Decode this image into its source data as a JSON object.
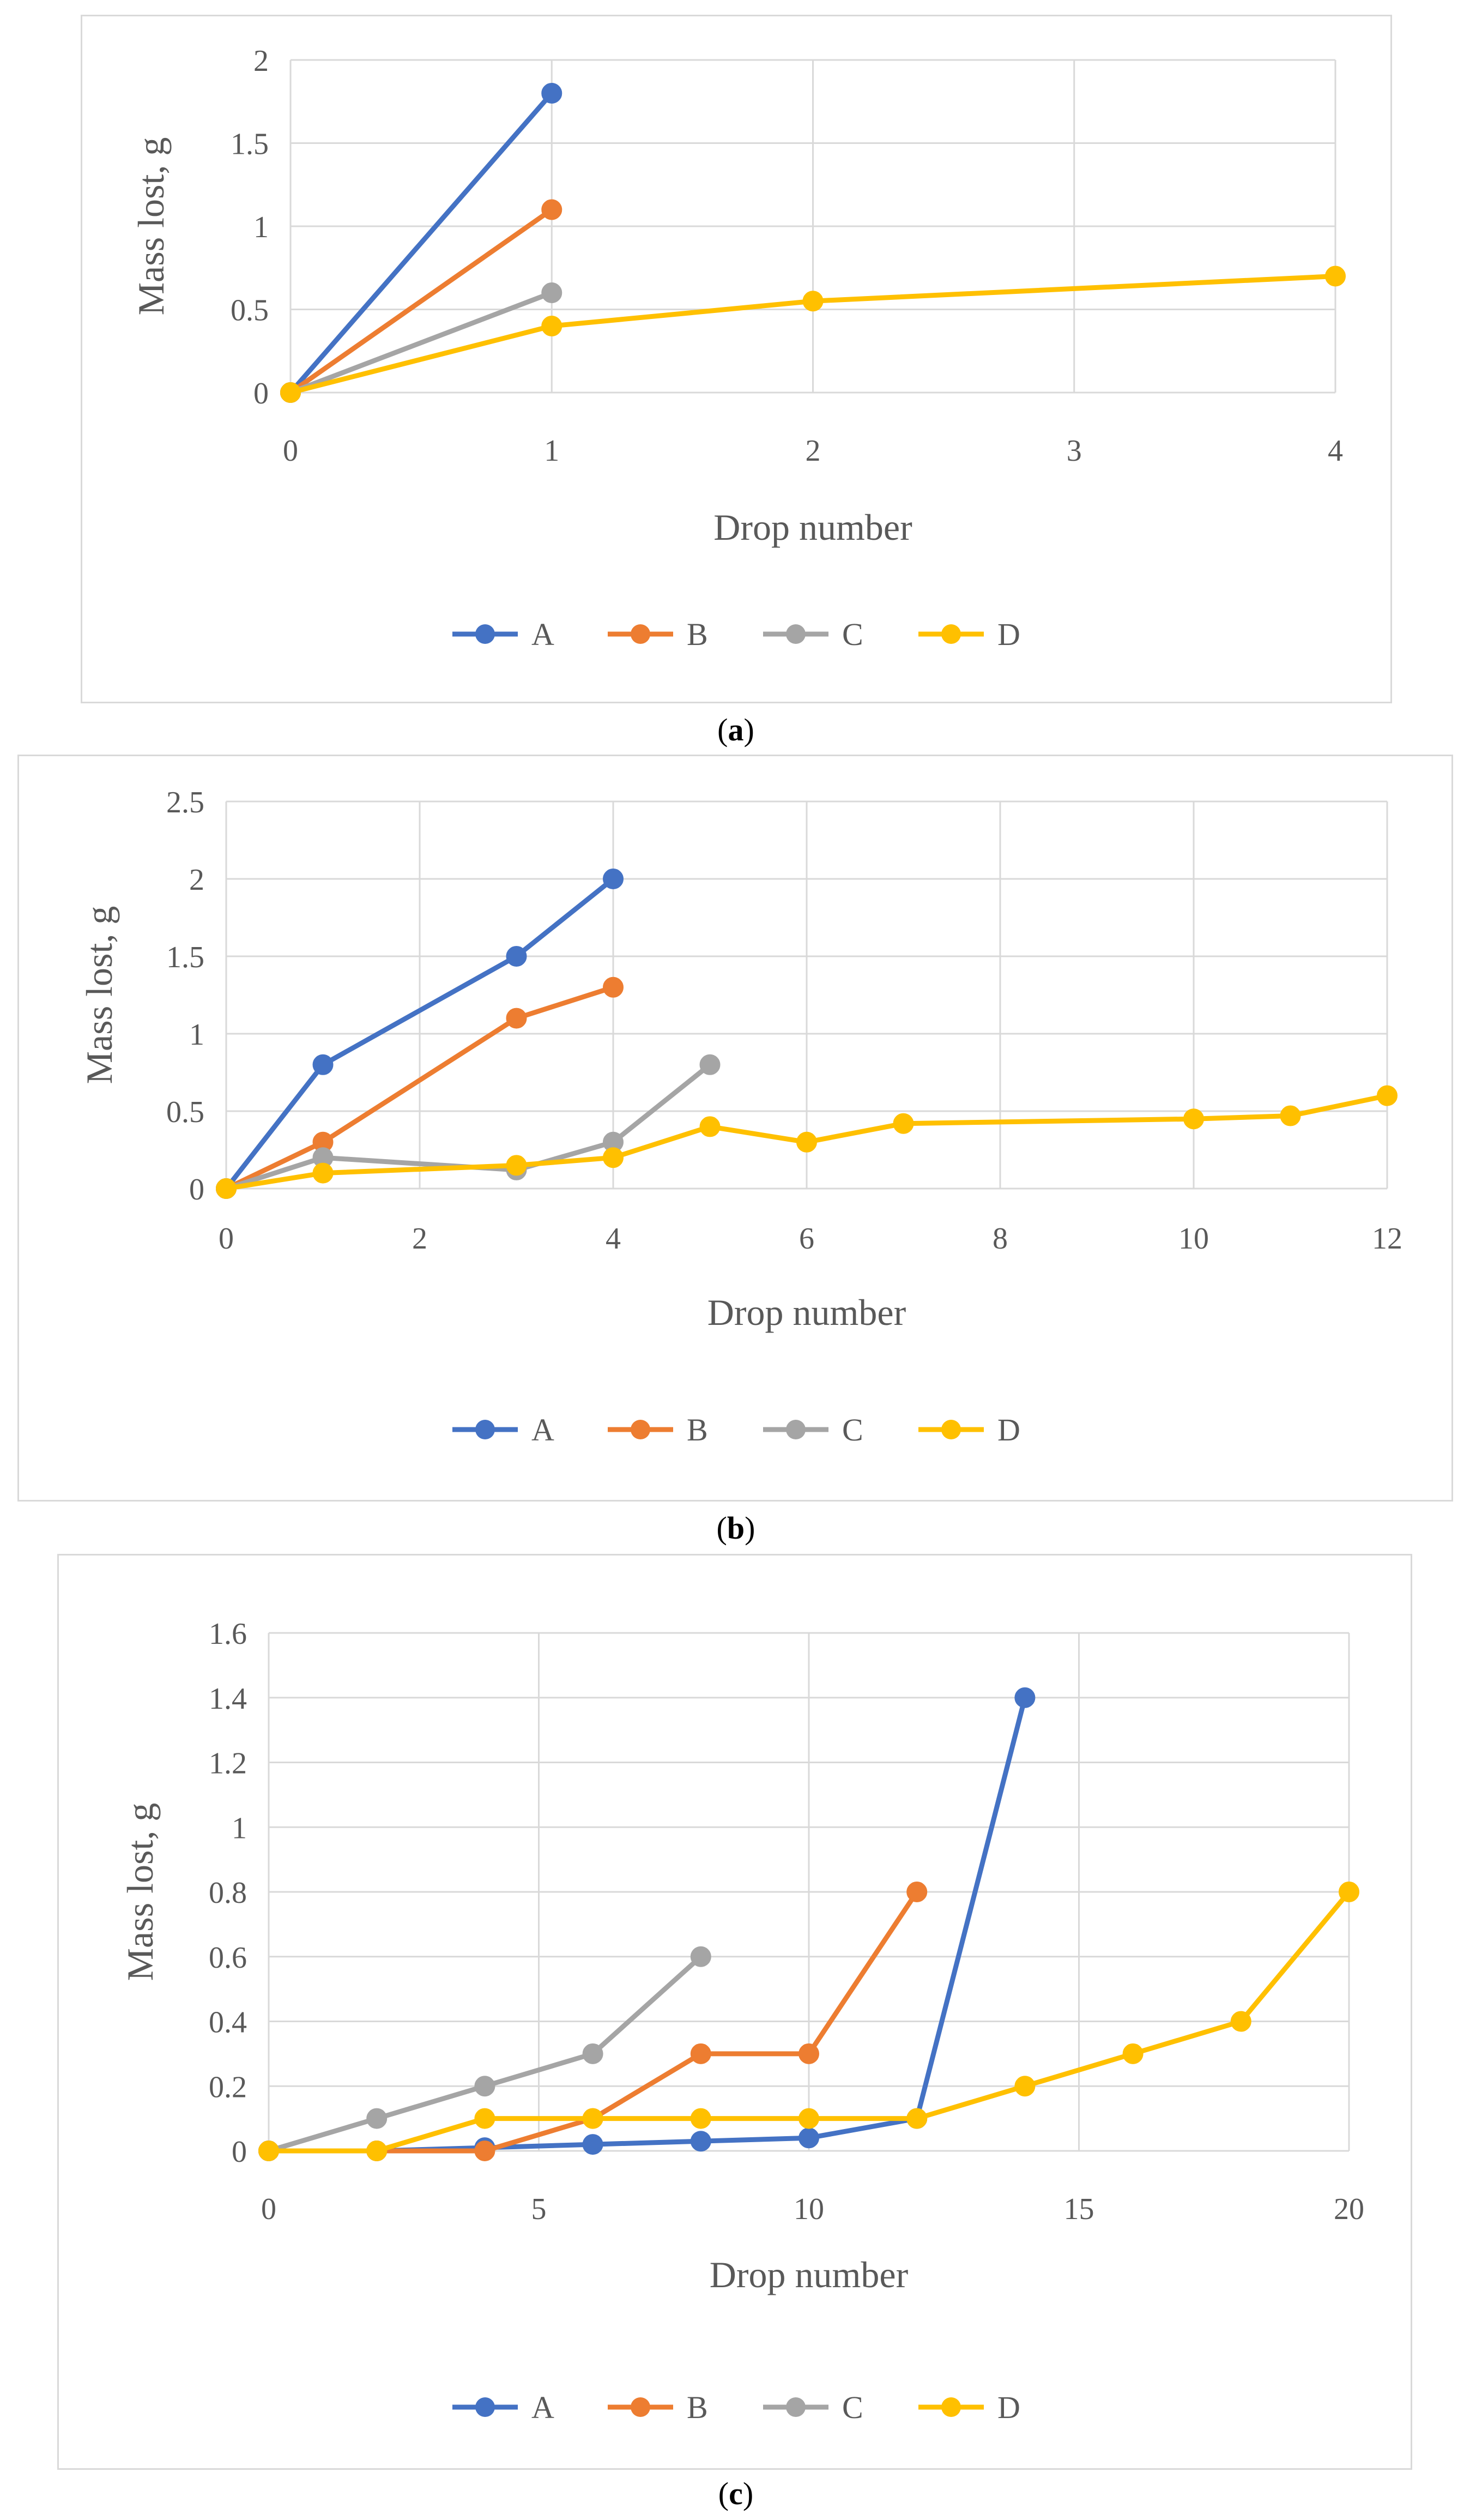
{
  "colors": {
    "A": "#4472C4",
    "B": "#ED7D31",
    "C": "#A5A5A5",
    "D": "#FFC000",
    "grid": "#d9d9d9",
    "text": "#595959"
  },
  "captions": [
    "a",
    "b",
    "c"
  ],
  "chart_data": [
    {
      "type": "line",
      "panel": "a",
      "xlabel": "Drop number",
      "ylabel": "Mass lost, g",
      "xlim": [
        0,
        4
      ],
      "ylim": [
        0,
        2
      ],
      "xticks": [
        "0",
        "1",
        "2",
        "3",
        "4"
      ],
      "yticks": [
        "0",
        "0.5",
        "1",
        "1.5",
        "2"
      ],
      "series": [
        {
          "name": "A",
          "x": [
            0,
            1
          ],
          "y": [
            0,
            1.8
          ]
        },
        {
          "name": "B",
          "x": [
            0,
            1
          ],
          "y": [
            0,
            1.1
          ]
        },
        {
          "name": "C",
          "x": [
            0,
            1
          ],
          "y": [
            0,
            0.6
          ]
        },
        {
          "name": "D",
          "x": [
            0,
            1,
            2,
            4
          ],
          "y": [
            0,
            0.4,
            0.55,
            0.7
          ]
        }
      ]
    },
    {
      "type": "line",
      "panel": "b",
      "xlabel": "Drop number",
      "ylabel": "Mass lost, g",
      "xlim": [
        0,
        12
      ],
      "ylim": [
        0,
        2.5
      ],
      "xticks": [
        "0",
        "2",
        "4",
        "6",
        "8",
        "10",
        "12"
      ],
      "yticks": [
        "0",
        "0.5",
        "1",
        "1.5",
        "2",
        "2.5"
      ],
      "series": [
        {
          "name": "A",
          "x": [
            0,
            1,
            3,
            4
          ],
          "y": [
            0,
            0.8,
            1.5,
            2.0
          ]
        },
        {
          "name": "B",
          "x": [
            0,
            1,
            3,
            4
          ],
          "y": [
            0,
            0.3,
            1.1,
            1.3
          ]
        },
        {
          "name": "C",
          "x": [
            0,
            1,
            3,
            4,
            5
          ],
          "y": [
            0,
            0.2,
            0.12,
            0.3,
            0.8
          ]
        },
        {
          "name": "D",
          "x": [
            0,
            1,
            3,
            4,
            5,
            6,
            7,
            10,
            11,
            12
          ],
          "y": [
            0,
            0.1,
            0.15,
            0.2,
            0.4,
            0.3,
            0.42,
            0.45,
            0.47,
            0.6
          ]
        }
      ]
    },
    {
      "type": "line",
      "panel": "c",
      "xlabel": "Drop number",
      "ylabel": "Mass lost, g",
      "xlim": [
        0,
        20
      ],
      "ylim": [
        0,
        1.6
      ],
      "xticks": [
        "0",
        "5",
        "10",
        "15",
        "20"
      ],
      "yticks": [
        "0",
        "0.2",
        "0.4",
        "0.6",
        "0.8",
        "1",
        "1.2",
        "1.4",
        "1.6"
      ],
      "series": [
        {
          "name": "A",
          "x": [
            0,
            2,
            4,
            6,
            8,
            10,
            12,
            14
          ],
          "y": [
            0,
            0,
            0.01,
            0.02,
            0.03,
            0.04,
            0.1,
            1.4
          ]
        },
        {
          "name": "B",
          "x": [
            0,
            2,
            4,
            6,
            8,
            10,
            12
          ],
          "y": [
            0,
            0,
            0,
            0.1,
            0.3,
            0.3,
            0.8
          ]
        },
        {
          "name": "C",
          "x": [
            0,
            2,
            4,
            6,
            8
          ],
          "y": [
            0,
            0.1,
            0.2,
            0.3,
            0.6
          ]
        },
        {
          "name": "D",
          "x": [
            0,
            2,
            4,
            6,
            8,
            10,
            12,
            14,
            16,
            18,
            20
          ],
          "y": [
            0,
            0,
            0.1,
            0.1,
            0.1,
            0.1,
            0.1,
            0.2,
            0.3,
            0.4,
            0.8
          ]
        }
      ]
    }
  ]
}
